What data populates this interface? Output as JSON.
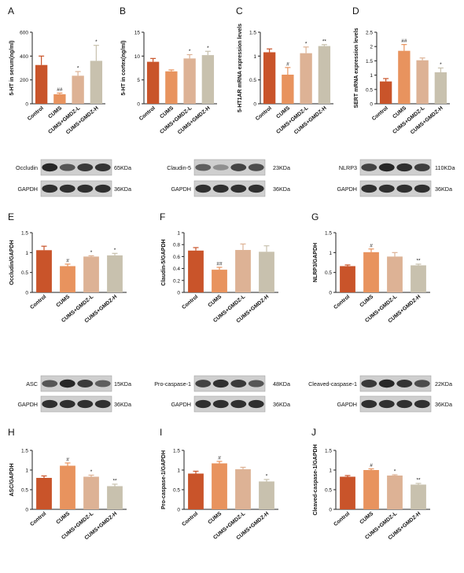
{
  "colors": {
    "control": "#c9542a",
    "cums": "#e8935e",
    "gmdz_l": "#ddb295",
    "gmdz_h": "#c8c1ae",
    "axis": "#222222"
  },
  "categories": [
    "Control",
    "CUMS",
    "CUMS+GMDZ-L",
    "CUMS+GMDZ-H"
  ],
  "chart_data": [
    {
      "panel": "A",
      "type": "bar",
      "ylabel": "5-HT in serum(ng/ml)",
      "ylim": [
        0,
        600
      ],
      "ticks": [
        0,
        200,
        400,
        600
      ],
      "categories": [
        "Control",
        "CUMS",
        "CUMS+GMDZ-L",
        "CUMS+GMDZ-H"
      ],
      "values": [
        325,
        80,
        235,
        360
      ],
      "errors": [
        75,
        10,
        35,
        130
      ],
      "annotations": [
        "",
        "##",
        "*",
        "*"
      ]
    },
    {
      "panel": "B",
      "type": "bar",
      "ylabel": "5-HT in cortex(ng/ml)",
      "ylim": [
        0,
        15
      ],
      "ticks": [
        0,
        5,
        10,
        15
      ],
      "categories": [
        "Control",
        "CUMS",
        "CUMS+GMDZ-L",
        "CUMS+GMDZ-H"
      ],
      "values": [
        8.8,
        6.8,
        9.5,
        10.2
      ],
      "errors": [
        0.7,
        0.3,
        0.8,
        0.8
      ],
      "annotations": [
        "",
        "",
        "*",
        "*"
      ]
    },
    {
      "panel": "C",
      "type": "bar",
      "ylabel": "5-HT1AR mRNA expression levels",
      "ylim": [
        0,
        1.5
      ],
      "ticks": [
        0,
        0.5,
        1.0,
        1.5
      ],
      "categories": [
        "Control",
        "CUMS",
        "CUMS+GMDZ-L",
        "CUMS+GMDZ-H"
      ],
      "values": [
        1.08,
        0.61,
        1.06,
        1.21
      ],
      "errors": [
        0.07,
        0.15,
        0.13,
        0.03
      ],
      "annotations": [
        "",
        "#",
        "*",
        "**"
      ]
    },
    {
      "panel": "D",
      "type": "bar",
      "ylabel": "SERT mRNA expression levels",
      "ylim": [
        0,
        2.5
      ],
      "ticks": [
        0,
        0.5,
        1.0,
        1.5,
        2.0,
        2.5
      ],
      "categories": [
        "Control",
        "CUMS",
        "CUMS+GMDZ-L",
        "CUMS+GMDZ-H"
      ],
      "values": [
        0.78,
        1.85,
        1.52,
        1.1
      ],
      "errors": [
        0.1,
        0.22,
        0.08,
        0.15
      ],
      "annotations": [
        "",
        "##",
        "",
        "*"
      ]
    },
    {
      "panel": "E",
      "type": "bar",
      "ylabel": "Occludin/GAPDH",
      "ylim": [
        0,
        1.5
      ],
      "ticks": [
        0,
        0.5,
        1.0,
        1.5
      ],
      "categories": [
        "Control",
        "CUMS",
        "CUMS+GMDZ-L",
        "CUMS+GMDZ-H"
      ],
      "values": [
        1.06,
        0.66,
        0.9,
        0.93
      ],
      "errors": [
        0.1,
        0.05,
        0.02,
        0.05
      ],
      "annotations": [
        "",
        "#",
        "*",
        "*"
      ]
    },
    {
      "panel": "F",
      "type": "bar",
      "ylabel": "Claudin-5/GAPDH",
      "ylim": [
        0,
        1.0
      ],
      "ticks": [
        0,
        0.2,
        0.4,
        0.6,
        0.8,
        1.0
      ],
      "categories": [
        "Control",
        "CUMS",
        "CUMS+GMDZ-L",
        "CUMS+GMDZ-H"
      ],
      "values": [
        0.7,
        0.38,
        0.71,
        0.68
      ],
      "errors": [
        0.05,
        0.04,
        0.1,
        0.1
      ],
      "annotations": [
        "",
        "##",
        "",
        ""
      ]
    },
    {
      "panel": "G",
      "type": "bar",
      "ylabel": "NLRP3/GAPDH",
      "ylim": [
        0,
        1.5
      ],
      "ticks": [
        0,
        0.5,
        1.0,
        1.5
      ],
      "categories": [
        "Control",
        "CUMS",
        "CUMS+GMDZ-L",
        "CUMS+GMDZ-H"
      ],
      "values": [
        0.66,
        1.01,
        0.9,
        0.68
      ],
      "errors": [
        0.03,
        0.08,
        0.1,
        0.03
      ],
      "annotations": [
        "",
        "#",
        "",
        "**"
      ]
    },
    {
      "panel": "H",
      "type": "bar",
      "ylabel": "ASC/GAPDH",
      "ylim": [
        0,
        1.5
      ],
      "ticks": [
        0,
        0.5,
        1.0,
        1.5
      ],
      "categories": [
        "Control",
        "CUMS",
        "CUMS+GMDZ-L",
        "CUMS+GMDZ-H"
      ],
      "values": [
        0.8,
        1.11,
        0.83,
        0.59
      ],
      "errors": [
        0.05,
        0.07,
        0.04,
        0.05
      ],
      "annotations": [
        "",
        "#",
        "*",
        "**"
      ]
    },
    {
      "panel": "I",
      "type": "bar",
      "ylabel": "Pro-caspase-1/GAPDH",
      "ylim": [
        0,
        1.5
      ],
      "ticks": [
        0,
        0.5,
        1.0,
        1.5
      ],
      "categories": [
        "Control",
        "CUMS",
        "CUMS+GMDZ-L",
        "CUMS+GMDZ-H"
      ],
      "values": [
        0.91,
        1.17,
        1.02,
        0.71
      ],
      "errors": [
        0.06,
        0.05,
        0.05,
        0.05
      ],
      "annotations": [
        "",
        "#",
        "",
        "*"
      ]
    },
    {
      "panel": "J",
      "type": "bar",
      "ylabel": "Cleaved-caspase-1/GAPDH",
      "ylim": [
        0,
        1.5
      ],
      "ticks": [
        0,
        0.5,
        1.0,
        1.5
      ],
      "categories": [
        "Control",
        "CUMS",
        "CUMS+GMDZ-L",
        "CUMS+GMDZ-H"
      ],
      "values": [
        0.83,
        1.0,
        0.86,
        0.63
      ],
      "errors": [
        0.03,
        0.03,
        0.02,
        0.03
      ],
      "annotations": [
        "",
        "#",
        "*",
        "**"
      ]
    }
  ],
  "blots": [
    {
      "label": "Occludin",
      "kda": "65KDa",
      "intensity": [
        0.85,
        0.6,
        0.75,
        0.78
      ]
    },
    {
      "label": "GAPDH",
      "kda": "36KDa",
      "intensity": [
        0.8,
        0.8,
        0.8,
        0.8
      ]
    },
    {
      "label": "Claudin-5",
      "kda": "23KDa",
      "intensity": [
        0.55,
        0.3,
        0.7,
        0.65
      ]
    },
    {
      "label": "GAPDH",
      "kda": "36KDa",
      "intensity": [
        0.8,
        0.8,
        0.8,
        0.8
      ]
    },
    {
      "label": "NLRP3",
      "kda": "110KDa",
      "intensity": [
        0.7,
        0.85,
        0.8,
        0.72
      ]
    },
    {
      "label": "GAPDH",
      "kda": "36KDa",
      "intensity": [
        0.8,
        0.8,
        0.8,
        0.8
      ]
    },
    {
      "label": "ASC",
      "kda": "15KDa",
      "intensity": [
        0.6,
        0.85,
        0.75,
        0.55
      ]
    },
    {
      "label": "GAPDH",
      "kda": "36KDa",
      "intensity": [
        0.8,
        0.8,
        0.8,
        0.8
      ]
    },
    {
      "label": "Pro-caspase-1",
      "kda": "48KDa",
      "intensity": [
        0.7,
        0.8,
        0.75,
        0.6
      ]
    },
    {
      "label": "GAPDH",
      "kda": "36KDa",
      "intensity": [
        0.8,
        0.8,
        0.8,
        0.8
      ]
    },
    {
      "label": "Cleaved-caspase-1",
      "kda": "22KDa",
      "intensity": [
        0.75,
        0.85,
        0.78,
        0.65
      ]
    },
    {
      "label": "GAPDH",
      "kda": "36KDa",
      "intensity": [
        0.8,
        0.8,
        0.8,
        0.8
      ]
    }
  ]
}
